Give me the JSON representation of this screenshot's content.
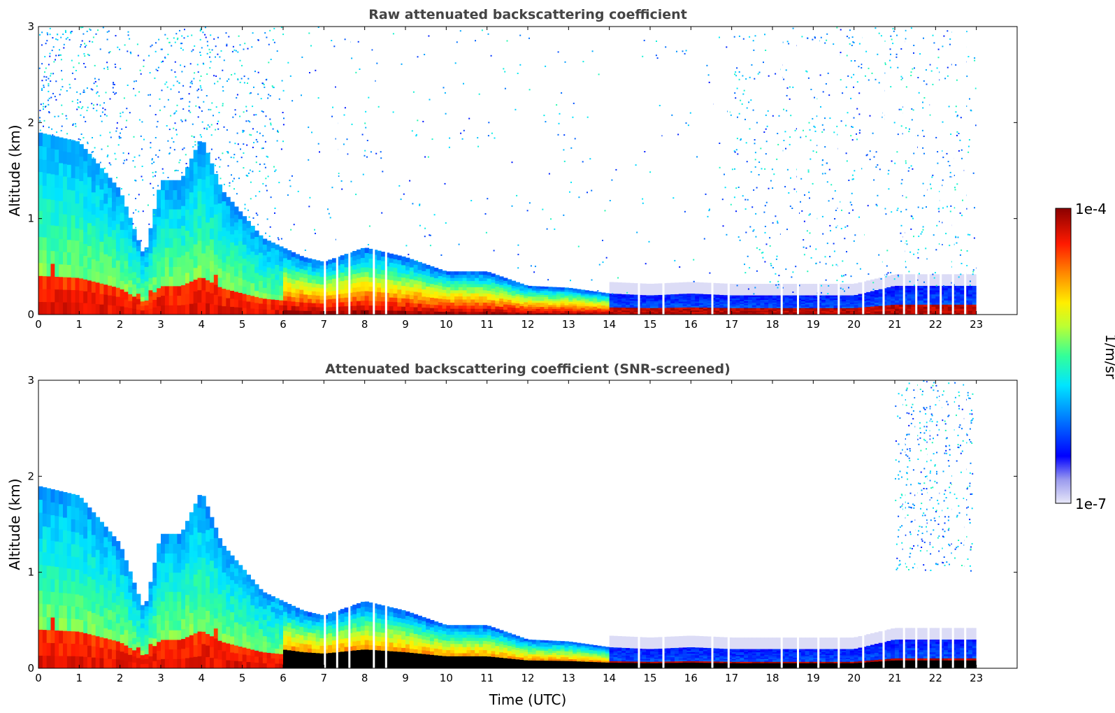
{
  "chart_data": [
    {
      "type": "heatmap",
      "title": "Raw attenuated backscattering coefficient",
      "xlabel": "",
      "ylabel": "Altitude (km)",
      "xlim": [
        0,
        24
      ],
      "ylim": [
        0,
        3
      ],
      "xticks": [
        "0",
        "1",
        "2",
        "3",
        "4",
        "5",
        "6",
        "7",
        "8",
        "9",
        "10",
        "11",
        "12",
        "13",
        "14",
        "15",
        "16",
        "17",
        "18",
        "19",
        "20",
        "21",
        "22",
        "23"
      ],
      "yticks": [
        "0",
        "1",
        "2",
        "3"
      ],
      "colorscale": "jet",
      "data_end_hour": 23,
      "boundary_layer_top_km": [
        {
          "x": 0.0,
          "y": 1.9
        },
        {
          "x": 1.0,
          "y": 1.8
        },
        {
          "x": 2.0,
          "y": 1.3
        },
        {
          "x": 2.6,
          "y": 0.6
        },
        {
          "x": 3.0,
          "y": 1.4
        },
        {
          "x": 3.5,
          "y": 1.4
        },
        {
          "x": 4.0,
          "y": 1.85
        },
        {
          "x": 4.5,
          "y": 1.3
        },
        {
          "x": 5.0,
          "y": 1.05
        },
        {
          "x": 5.5,
          "y": 0.8
        },
        {
          "x": 6.0,
          "y": 0.7
        },
        {
          "x": 6.5,
          "y": 0.6
        },
        {
          "x": 7.0,
          "y": 0.55
        },
        {
          "x": 8.0,
          "y": 0.7
        },
        {
          "x": 9.0,
          "y": 0.6
        },
        {
          "x": 10.0,
          "y": 0.45
        },
        {
          "x": 11.0,
          "y": 0.45
        },
        {
          "x": 12.0,
          "y": 0.3
        },
        {
          "x": 13.0,
          "y": 0.28
        },
        {
          "x": 14.0,
          "y": 0.22
        },
        {
          "x": 15.0,
          "y": 0.2
        },
        {
          "x": 16.0,
          "y": 0.22
        },
        {
          "x": 17.0,
          "y": 0.2
        },
        {
          "x": 18.0,
          "y": 0.2
        },
        {
          "x": 19.0,
          "y": 0.2
        },
        {
          "x": 20.0,
          "y": 0.2
        },
        {
          "x": 21.0,
          "y": 0.3
        },
        {
          "x": 23.0,
          "y": 0.3
        }
      ]
    },
    {
      "type": "heatmap",
      "title": "Attenuated backscattering coefficient (SNR-screened)",
      "xlabel": "Time (UTC)",
      "ylabel": "Altitude (km)",
      "xlim": [
        0,
        24
      ],
      "ylim": [
        0,
        3
      ],
      "xticks": [
        "0",
        "1",
        "2",
        "3",
        "4",
        "5",
        "6",
        "7",
        "8",
        "9",
        "10",
        "11",
        "12",
        "13",
        "14",
        "15",
        "16",
        "17",
        "18",
        "19",
        "20",
        "21",
        "22",
        "23"
      ],
      "yticks": [
        "0",
        "1",
        "2",
        "3"
      ],
      "colorscale": "jet",
      "data_end_hour": 23
    }
  ],
  "colorbar": {
    "label": "1/m/sr",
    "max_label": "1e-4",
    "min_label": "1e-7",
    "colors": [
      "#e6e6f6",
      "#0000ff",
      "#00aaff",
      "#00ffcc",
      "#aaff44",
      "#ffff00",
      "#ff8800",
      "#ff0000",
      "#8b0000"
    ]
  }
}
